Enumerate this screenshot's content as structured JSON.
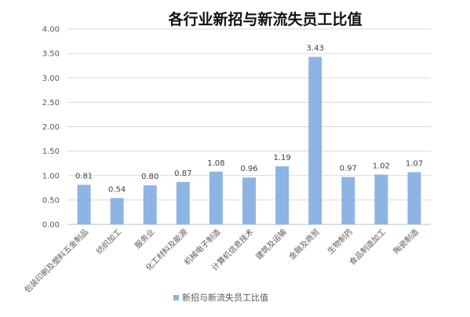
{
  "chart_data": {
    "type": "bar",
    "title": "各行业新招与新流失员工比值",
    "categories": [
      "包装印刷及塑料五金制品",
      "纺织加工",
      "服务业",
      "化工材料及能源",
      "机械电子制造",
      "计算机信息技术",
      "建筑及运输",
      "金融及商贸",
      "生物制药",
      "食品制造加工",
      "陶瓷制造"
    ],
    "series": [
      {
        "name": "新招与新流失员工比值",
        "values": [
          0.81,
          0.54,
          0.8,
          0.87,
          1.08,
          0.96,
          1.19,
          3.43,
          0.97,
          1.02,
          1.07
        ],
        "labels": [
          "0.81",
          "0.54",
          "0.80",
          "0.87",
          "1.08",
          "0.96",
          "1.19",
          "3.43",
          "0.97",
          "1.02",
          "1.07"
        ]
      }
    ],
    "yticks": [
      "0.00",
      "0.50",
      "1.00",
      "1.50",
      "2.00",
      "2.50",
      "3.00",
      "3.50",
      "4.00"
    ],
    "ylim": [
      0,
      4
    ],
    "grid": true,
    "legend_position": "bottom",
    "colors": {
      "bar": "#8eb4e3",
      "grid": "#d9d9d9",
      "text": "#595959"
    }
  }
}
